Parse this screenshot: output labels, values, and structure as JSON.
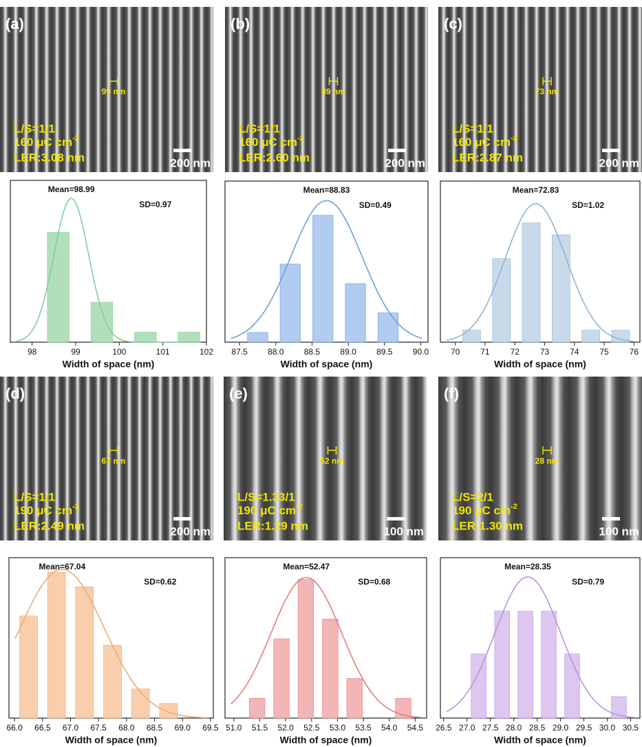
{
  "sem_panels": [
    {
      "tag": "(a)",
      "width_label": "99 nm",
      "ratio": "L/S=1/1",
      "dose": "160 μC cm",
      "dose_exp": "-2",
      "ler": "LER:3.08 nm",
      "scale": "200 nm"
    },
    {
      "tag": "(b)",
      "width_label": "89 nm",
      "ratio": "L/S=1/1",
      "dose": "160 μC cm",
      "dose_exp": "-2",
      "ler": "LER:2.60 nm",
      "scale": "200 nm"
    },
    {
      "tag": "(c)",
      "width_label": "73 nm",
      "ratio": "L/S=1/1",
      "dose": "160 μC cm",
      "dose_exp": "-2",
      "ler": "LER:2.87 nm",
      "scale": "200 nm"
    },
    {
      "tag": "(d)",
      "width_label": "67 nm",
      "ratio": "L/S=1/1",
      "dose": "190 μC cm",
      "dose_exp": "-2",
      "ler": "LER:2.49 nm",
      "scale": "200 nm"
    },
    {
      "tag": "(e)",
      "width_label": "52 nm",
      "ratio": "L/S=1.33/1",
      "dose": "190 μC cm",
      "dose_exp": "-2",
      "ler": "LER:1.29 nm",
      "scale": "100 nm"
    },
    {
      "tag": "(f)",
      "width_label": "28 nm",
      "ratio": "L/S=2/1",
      "dose": "190 μC cm",
      "dose_exp": "-2",
      "ler": "LER:1.30 nm",
      "scale": "100 nm"
    }
  ],
  "chart_data": [
    {
      "type": "bar",
      "xlabel": "Width of space (nm)",
      "mean_label": "Mean=98.99",
      "sd_label": "SD=0.97",
      "x": [
        98.6,
        99.6,
        100.6,
        101.6
      ],
      "values": [
        11,
        4,
        1,
        1
      ],
      "xlim": [
        97.5,
        102
      ],
      "ylim": [
        0,
        16.2
      ],
      "xticks": [
        98,
        99,
        100,
        101,
        102
      ],
      "color": "#a8dcb5",
      "line_color": "#7fcf9a",
      "fit": {
        "center": 98.9,
        "sigma": 0.4,
        "peak": 14.4
      }
    },
    {
      "type": "bar",
      "xlabel": "Width of space (nm)",
      "mean_label": "Mean=88.83",
      "sd_label": "SD=0.49",
      "x": [
        87.75,
        88.2,
        88.65,
        89.1,
        89.55
      ],
      "values": [
        1,
        8,
        13,
        6,
        3
      ],
      "xlim": [
        87.3,
        90.1
      ],
      "ylim": [
        0,
        16.5
      ],
      "xticks": [
        87.5,
        {
          "value": 88,
          "label": "88.0"
        },
        88.5,
        {
          "value": 89,
          "label": "89.0"
        },
        89.5,
        {
          "value": 90,
          "label": "90.0"
        }
      ],
      "color": "#a9c6ee",
      "line_color": "#6c9fd8",
      "fit": {
        "center": 88.7,
        "sigma": 0.49,
        "peak": 14.5
      }
    },
    {
      "type": "bar",
      "xlabel": "Width of space (nm)",
      "mean_label": "Mean=72.83",
      "sd_label": "SD=1.02",
      "x": [
        70.55,
        71.55,
        72.55,
        73.55,
        74.55,
        75.55
      ],
      "values": [
        1,
        7,
        10,
        9,
        1,
        1
      ],
      "xlim": [
        69.5,
        76.2
      ],
      "ylim": [
        0,
        13.5
      ],
      "xticks": [
        70,
        71,
        72,
        73,
        74,
        75,
        76
      ],
      "color": "#c2d5e8",
      "line_color": "#8fb3d3",
      "fit": {
        "center": 72.7,
        "sigma": 1.02,
        "peak": 11.6
      }
    },
    {
      "type": "bar",
      "xlabel": "Width of space (nm)",
      "mean_label": "Mean=67.04",
      "sd_label": "SD=0.62",
      "x": [
        66.25,
        66.75,
        67.25,
        67.75,
        68.25,
        68.75
      ],
      "values": [
        7,
        10,
        9,
        5,
        2,
        1
      ],
      "xlim": [
        65.9,
        69.55
      ],
      "ylim": [
        0,
        11
      ],
      "xticks": [
        {
          "value": 66,
          "label": "66.0"
        },
        66.5,
        {
          "value": 67,
          "label": "67.0"
        },
        67.5,
        {
          "value": 68,
          "label": "68.0"
        },
        68.5,
        {
          "value": 69,
          "label": "69.0"
        },
        69.5
      ],
      "color": "#f8c9a4",
      "line_color": "#eeaa70",
      "fit": {
        "center": 66.85,
        "sigma": 0.75,
        "peak": 10.2
      }
    },
    {
      "type": "bar",
      "xlabel": "Width of space (nm)",
      "mean_label": "Mean=52.47",
      "sd_label": "SD=0.68",
      "x": [
        51.45,
        51.92,
        52.39,
        52.86,
        53.33,
        54.27
      ],
      "values": [
        1,
        4,
        7,
        5,
        2,
        1
      ],
      "xlim": [
        50.83,
        54.72
      ],
      "ylim": [
        0,
        8.1
      ],
      "xticks": [
        {
          "value": 51,
          "label": "51.0"
        },
        51.5,
        {
          "value": 52,
          "label": "52.0"
        },
        52.5,
        {
          "value": 53,
          "label": "53.0"
        },
        53.5,
        {
          "value": 54,
          "label": "54.0"
        },
        54.5
      ],
      "color": "#f2aeae",
      "line_color": "#e27c7c",
      "fit": {
        "center": 52.4,
        "sigma": 0.68,
        "peak": 7.1
      }
    },
    {
      "type": "bar",
      "xlabel": "Width of space (nm)",
      "mean_label": "Mean=28.35",
      "sd_label": "SD=0.79",
      "x": [
        27.25,
        27.75,
        28.25,
        28.75,
        29.25,
        30.25
      ],
      "values": [
        3,
        5,
        5,
        5,
        3,
        1
      ],
      "xlim": [
        26.43,
        30.7
      ],
      "ylim": [
        0,
        7.5
      ],
      "xticks": [
        26.5,
        {
          "value": 27,
          "label": "27.0"
        },
        27.5,
        {
          "value": 28,
          "label": "28.0"
        },
        28.5,
        {
          "value": 29,
          "label": "29.0"
        },
        29.5,
        {
          "value": 30,
          "label": "30.0"
        },
        30.5
      ],
      "color": "#d9c0ee",
      "line_color": "#b993df",
      "fit": {
        "center": 28.3,
        "sigma": 0.7,
        "peak": 6.6
      }
    }
  ]
}
